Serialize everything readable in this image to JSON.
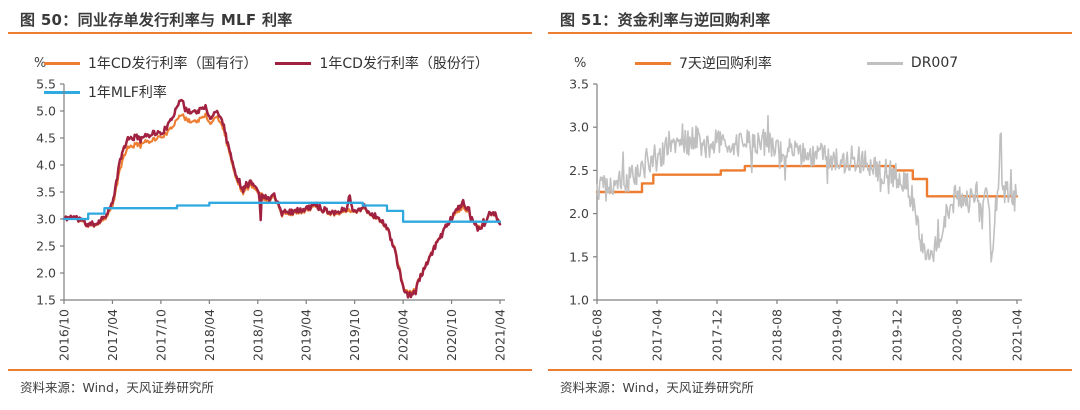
{
  "accent_orange": "#ED7D31",
  "chart_data": [
    {
      "type": "line",
      "title": "图 50：同业存单发行利率与 MLF 利率",
      "unit_label": "%",
      "source": "资料来源：Wind，天风证券研究所",
      "ylim": [
        1.5,
        5.5
      ],
      "yticks": [
        5.5,
        5.0,
        4.5,
        4.0,
        3.5,
        3.0,
        2.5,
        2.0,
        1.5
      ],
      "x_unit": "months since 2016/10",
      "xlim": [
        0,
        54
      ],
      "xtick_t": [
        0,
        6,
        12,
        18,
        24,
        30,
        36,
        42,
        48,
        54
      ],
      "xtick_labels": [
        "2016/10",
        "2017/04",
        "2017/10",
        "2018/04",
        "2018/10",
        "2019/04",
        "2019/10",
        "2020/04",
        "2020/10",
        "2021/04"
      ],
      "grid": false,
      "legend_position": "top",
      "series": [
        {
          "name": "1年CD发行利率（国有行）",
          "color": "#ED7D31",
          "width": 2.1,
          "style": "line",
          "noise": 0.04,
          "seed": 11,
          "points": [
            [
              0,
              3.0
            ],
            [
              1,
              3.03
            ],
            [
              2,
              2.98
            ],
            [
              3,
              2.87
            ],
            [
              4,
              2.9
            ],
            [
              5,
              3.0
            ],
            [
              6,
              3.22
            ],
            [
              6.5,
              3.6
            ],
            [
              7,
              3.95
            ],
            [
              7.5,
              4.2
            ],
            [
              8,
              4.32
            ],
            [
              9,
              4.38
            ],
            [
              10,
              4.42
            ],
            [
              11,
              4.47
            ],
            [
              12,
              4.52
            ],
            [
              13,
              4.62
            ],
            [
              13.5,
              4.72
            ],
            [
              14,
              4.88
            ],
            [
              14.5,
              4.95
            ],
            [
              15,
              4.85
            ],
            [
              16,
              4.8
            ],
            [
              17,
              4.85
            ],
            [
              17.5,
              4.92
            ],
            [
              18,
              4.78
            ],
            [
              19,
              4.9
            ],
            [
              19.5,
              4.75
            ],
            [
              20,
              4.55
            ],
            [
              21,
              3.9
            ],
            [
              22,
              3.52
            ],
            [
              23,
              3.63
            ],
            [
              24,
              3.52
            ],
            [
              25,
              3.35
            ],
            [
              26,
              3.42
            ],
            [
              27,
              3.12
            ],
            [
              28,
              3.1
            ],
            [
              29,
              3.13
            ],
            [
              30,
              3.15
            ],
            [
              31,
              3.25
            ],
            [
              32,
              3.18
            ],
            [
              33,
              3.1
            ],
            [
              34,
              3.1
            ],
            [
              35,
              3.17
            ],
            [
              36,
              3.12
            ],
            [
              37,
              3.2
            ],
            [
              38,
              3.08
            ],
            [
              39,
              3.0
            ],
            [
              40,
              2.82
            ],
            [
              41,
              2.45
            ],
            [
              41.5,
              2.1
            ],
            [
              42,
              1.75
            ],
            [
              42.5,
              1.64
            ],
            [
              43,
              1.63
            ],
            [
              43.5,
              1.72
            ],
            [
              44,
              1.9
            ],
            [
              45,
              2.2
            ],
            [
              46,
              2.52
            ],
            [
              47,
              2.8
            ],
            [
              48,
              3.0
            ],
            [
              49,
              3.18
            ],
            [
              49.5,
              3.24
            ],
            [
              50,
              3.12
            ],
            [
              51,
              2.88
            ],
            [
              51.5,
              2.82
            ],
            [
              52,
              2.93
            ],
            [
              53,
              3.1
            ],
            [
              54,
              2.94
            ]
          ]
        },
        {
          "name": "1年CD发行利率（股份行）",
          "color": "#A12240",
          "width": 2.5,
          "style": "line",
          "noise": 0.05,
          "seed": 11,
          "points": [
            [
              0,
              3.0
            ],
            [
              1,
              3.05
            ],
            [
              2,
              3.0
            ],
            [
              3,
              2.89
            ],
            [
              4,
              2.92
            ],
            [
              5,
              3.04
            ],
            [
              6,
              3.28
            ],
            [
              6.5,
              3.7
            ],
            [
              7,
              4.12
            ],
            [
              7.5,
              4.35
            ],
            [
              8,
              4.48
            ],
            [
              9,
              4.52
            ],
            [
              10,
              4.52
            ],
            [
              11,
              4.6
            ],
            [
              12,
              4.58
            ],
            [
              13,
              4.75
            ],
            [
              13.5,
              4.9
            ],
            [
              14,
              5.12
            ],
            [
              14.5,
              5.25
            ],
            [
              15,
              5.02
            ],
            [
              16,
              4.98
            ],
            [
              17,
              5.02
            ],
            [
              17.5,
              5.07
            ],
            [
              18,
              4.88
            ],
            [
              19,
              5.0
            ],
            [
              19.5,
              4.85
            ],
            [
              20,
              4.62
            ],
            [
              21,
              3.95
            ],
            [
              22,
              3.58
            ],
            [
              23,
              3.69
            ],
            [
              24,
              3.57
            ],
            [
              24.2,
              3.5
            ],
            [
              24.35,
              2.92
            ],
            [
              24.5,
              3.48
            ],
            [
              25,
              3.4
            ],
            [
              26,
              3.46
            ],
            [
              27,
              3.16
            ],
            [
              28,
              3.13
            ],
            [
              29,
              3.16
            ],
            [
              30,
              3.18
            ],
            [
              31,
              3.28
            ],
            [
              32,
              3.2
            ],
            [
              33,
              3.13
            ],
            [
              34,
              3.13
            ],
            [
              35,
              3.2
            ],
            [
              35.4,
              3.45
            ],
            [
              35.7,
              3.15
            ],
            [
              36,
              3.14
            ],
            [
              37,
              3.22
            ],
            [
              38,
              3.1
            ],
            [
              39,
              3.02
            ],
            [
              40,
              2.84
            ],
            [
              41,
              2.42
            ],
            [
              41.5,
              2.05
            ],
            [
              42,
              1.72
            ],
            [
              42.5,
              1.6
            ],
            [
              43,
              1.59
            ],
            [
              43.5,
              1.68
            ],
            [
              44,
              1.88
            ],
            [
              45,
              2.18
            ],
            [
              46,
              2.5
            ],
            [
              47,
              2.8
            ],
            [
              48,
              3.02
            ],
            [
              49,
              3.24
            ],
            [
              49.5,
              3.32
            ],
            [
              50,
              3.15
            ],
            [
              51,
              2.86
            ],
            [
              51.5,
              2.78
            ],
            [
              52,
              2.9
            ],
            [
              53,
              3.12
            ],
            [
              54,
              2.92
            ]
          ]
        },
        {
          "name": "1年MLF利率",
          "color": "#2FA9E0",
          "width": 2.3,
          "style": "step",
          "noise": 0,
          "seed": 1,
          "points": [
            [
              0,
              3.0
            ],
            [
              3,
              3.1
            ],
            [
              5,
              3.2
            ],
            [
              14,
              3.25
            ],
            [
              18,
              3.3
            ],
            [
              37,
              3.25
            ],
            [
              40,
              3.15
            ],
            [
              42,
              2.95
            ],
            [
              54,
              2.95
            ]
          ]
        }
      ]
    },
    {
      "type": "line",
      "title": "图 51：资金利率与逆回购利率",
      "unit_label": "%",
      "source": "资料来源：Wind，天风证券研究所",
      "ylim": [
        1.0,
        3.5
      ],
      "yticks": [
        3.5,
        3.0,
        2.5,
        2.0,
        1.5,
        1.0
      ],
      "x_unit": "months since 2016-08",
      "xlim": [
        0,
        56
      ],
      "xtick_t": [
        0,
        8,
        16,
        24,
        32,
        40,
        48,
        56
      ],
      "xtick_labels": [
        "2016-08",
        "2017-04",
        "2017-12",
        "2018-08",
        "2019-04",
        "2019-12",
        "2020-08",
        "2021-04"
      ],
      "grid": false,
      "legend_position": "top",
      "series": [
        {
          "name": "7天逆回购利率",
          "color": "#ED7D31",
          "width": 2.4,
          "style": "step",
          "noise": 0,
          "seed": 1,
          "points": [
            [
              0,
              2.25
            ],
            [
              6,
              2.35
            ],
            [
              7.5,
              2.45
            ],
            [
              16.5,
              2.5
            ],
            [
              19.7,
              2.55
            ],
            [
              39.6,
              2.5
            ],
            [
              42.1,
              2.4
            ],
            [
              44,
              2.2
            ],
            [
              56,
              2.2
            ]
          ]
        },
        {
          "name": "DR007",
          "color": "#C0C0C0",
          "width": 1.6,
          "style": "line",
          "noise": 0.15,
          "seed": 5,
          "points": [
            [
              0,
              2.28
            ],
            [
              1,
              2.32
            ],
            [
              2,
              2.3
            ],
            [
              3,
              2.36
            ],
            [
              4,
              2.38
            ],
            [
              5,
              2.44
            ],
            [
              6,
              2.52
            ],
            [
              7,
              2.6
            ],
            [
              8,
              2.64
            ],
            [
              9,
              2.72
            ],
            [
              10,
              2.8
            ],
            [
              11,
              2.86
            ],
            [
              12,
              2.8
            ],
            [
              13,
              2.88
            ],
            [
              14,
              2.82
            ],
            [
              15,
              2.78
            ],
            [
              16,
              2.85
            ],
            [
              17,
              2.82
            ],
            [
              18,
              2.78
            ],
            [
              19,
              2.82
            ],
            [
              20,
              2.85
            ],
            [
              21,
              2.8
            ],
            [
              22,
              2.78
            ],
            [
              23,
              2.82
            ],
            [
              24,
              2.75
            ],
            [
              25,
              2.72
            ],
            [
              26,
              2.78
            ],
            [
              27,
              2.72
            ],
            [
              28,
              2.65
            ],
            [
              29,
              2.7
            ],
            [
              30,
              2.66
            ],
            [
              31,
              2.62
            ],
            [
              32,
              2.66
            ],
            [
              33,
              2.6
            ],
            [
              34,
              2.65
            ],
            [
              35,
              2.62
            ],
            [
              36,
              2.58
            ],
            [
              37,
              2.55
            ],
            [
              38,
              2.5
            ],
            [
              39,
              2.48
            ],
            [
              40,
              2.42
            ],
            [
              41,
              2.35
            ],
            [
              42,
              2.18
            ],
            [
              43,
              1.8
            ],
            [
              43.5,
              1.55
            ],
            [
              44,
              1.42
            ],
            [
              44.5,
              1.5
            ],
            [
              45,
              1.6
            ],
            [
              45.5,
              1.7
            ],
            [
              46,
              1.85
            ],
            [
              46.5,
              2.0
            ],
            [
              47,
              2.1
            ],
            [
              48,
              2.2
            ],
            [
              48.5,
              2.15
            ],
            [
              49,
              2.22
            ],
            [
              49.5,
              2.1
            ],
            [
              50,
              2.25
            ],
            [
              50.5,
              2.3
            ],
            [
              51,
              2.2
            ],
            [
              51.5,
              2.05
            ],
            [
              52,
              2.28
            ],
            [
              52.5,
              1.75
            ],
            [
              52.8,
              1.5
            ],
            [
              53,
              2.05
            ],
            [
              53.5,
              2.25
            ],
            [
              53.8,
              3.1
            ],
            [
              54,
              2.45
            ],
            [
              54.3,
              2.1
            ],
            [
              54.6,
              2.3
            ],
            [
              55,
              2.15
            ],
            [
              55.5,
              2.22
            ],
            [
              56,
              2.18
            ]
          ]
        }
      ]
    }
  ]
}
